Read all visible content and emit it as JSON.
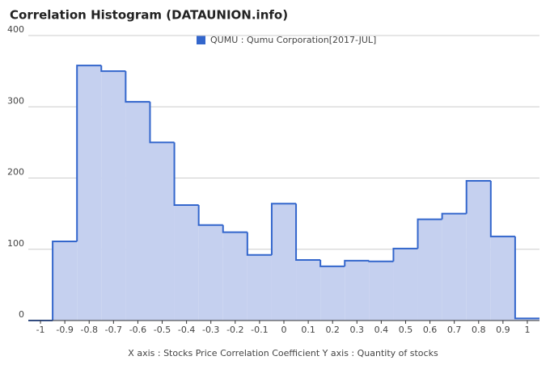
{
  "chart_data": {
    "type": "histogram",
    "title": "Correlation Histogram (DATAUNION.info)",
    "x_label": "X axis : Stocks Price Correlation Coefficient  Y axis : Quantity of stocks",
    "series_name": "QUMU : Qumu Corporation[2017-JUL]",
    "color": "#3366cc",
    "fill": "#c5d0ef",
    "bins": [
      -1.05,
      -0.95,
      -0.85,
      -0.75,
      -0.65,
      -0.55,
      -0.45,
      -0.35,
      -0.25,
      -0.15,
      -0.05,
      0.05,
      0.15,
      0.25,
      0.35,
      0.45,
      0.55,
      0.65,
      0.75,
      0.85,
      0.95,
      1.05
    ],
    "values": [
      0,
      111,
      358,
      350,
      307,
      250,
      162,
      134,
      124,
      92,
      164,
      85,
      76,
      84,
      83,
      101,
      142,
      150,
      196,
      118,
      3
    ],
    "xlim": [
      -1.05,
      1.05
    ],
    "xticks": [
      -1,
      -0.9,
      -0.8,
      -0.7,
      -0.6,
      -0.5,
      -0.4,
      -0.3,
      -0.2,
      -0.1,
      0,
      0.1,
      0.2,
      0.3,
      0.4,
      0.5,
      0.6,
      0.7,
      0.8,
      0.9,
      1
    ],
    "ylim": [
      0,
      400
    ],
    "yticks": [
      0,
      100,
      200,
      300,
      400
    ],
    "grid": true
  }
}
